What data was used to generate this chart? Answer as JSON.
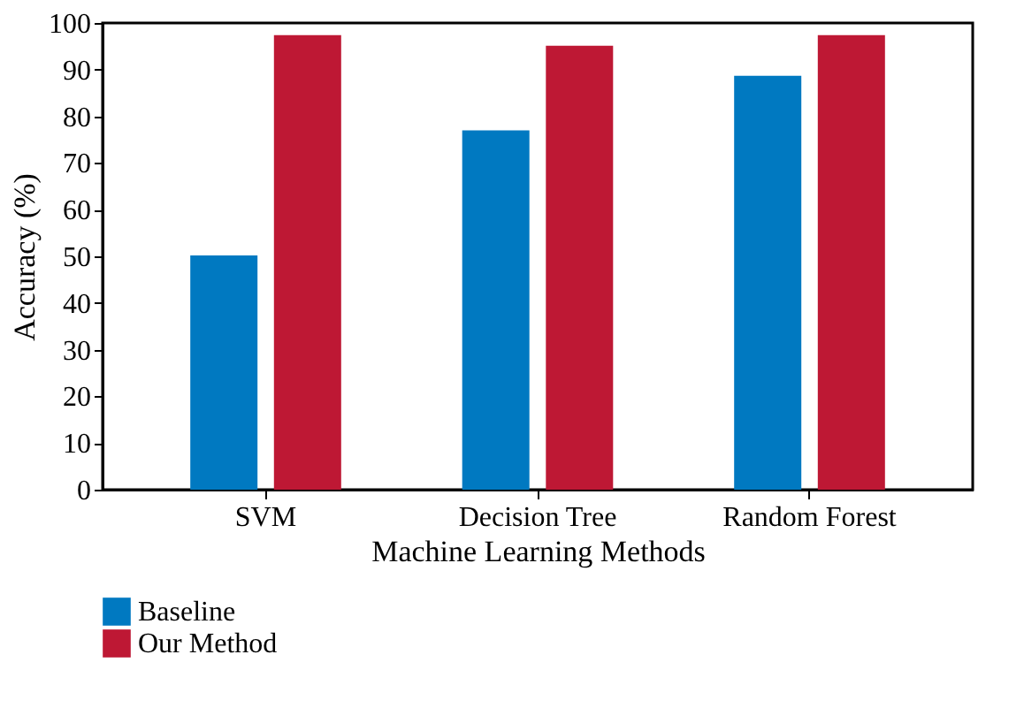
{
  "chart_data": {
    "type": "bar",
    "xlabel": "Machine Learning Methods",
    "ylabel": "Accuracy (%)",
    "categories": [
      "SVM",
      "Decision Tree",
      "Random Forest"
    ],
    "series": [
      {
        "name": "Baseline",
        "color": "#0079c1",
        "values": [
          50.2,
          77.0,
          88.7
        ]
      },
      {
        "name": "Our Method",
        "color": "#be1834",
        "values": [
          97.4,
          95.1,
          97.4
        ]
      }
    ],
    "ylim": [
      0,
      100
    ],
    "yticks": [
      0,
      10,
      20,
      30,
      40,
      50,
      60,
      70,
      80,
      90,
      100
    ],
    "grid": false,
    "legend": "bottom"
  }
}
